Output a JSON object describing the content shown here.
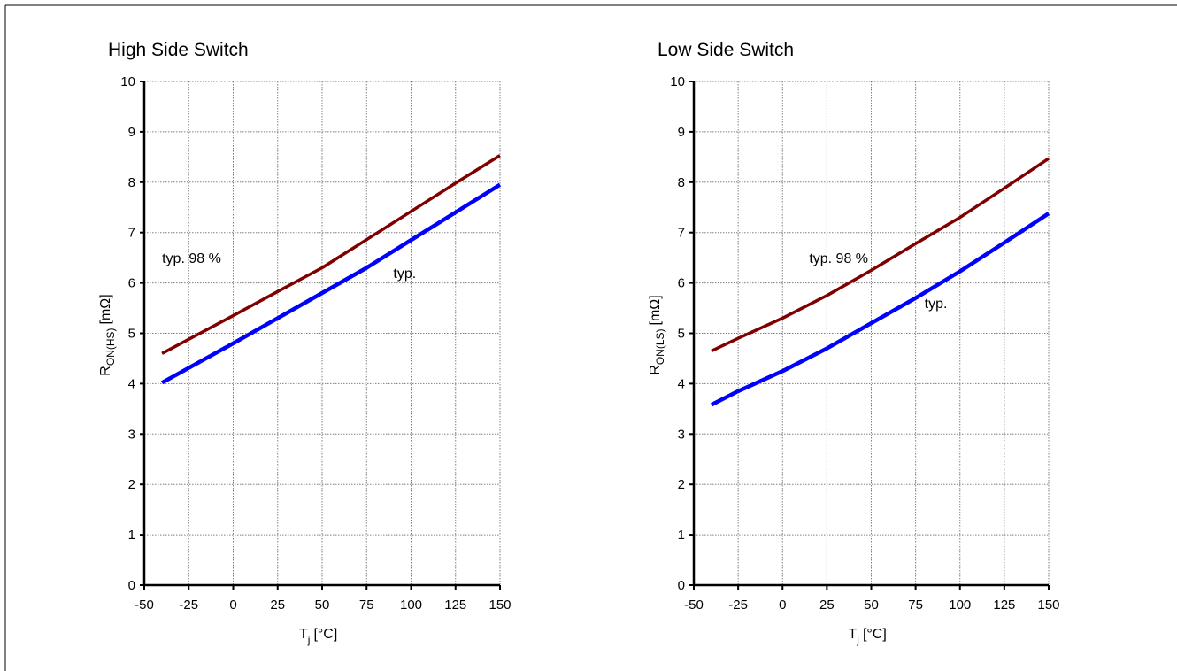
{
  "chart_data": [
    {
      "type": "line",
      "title": "High Side Switch",
      "xlabel_main": "T",
      "xlabel_sub": "j",
      "xlabel_unit": "[°C]",
      "ylabel_main": "R",
      "ylabel_sub": "ON(HS)",
      "ylabel_unit": "[mΩ]",
      "xlim": [
        -50,
        150
      ],
      "ylim": [
        0,
        10
      ],
      "xticks": [
        -50,
        -25,
        0,
        25,
        50,
        75,
        100,
        125,
        150
      ],
      "yticks": [
        0,
        1,
        2,
        3,
        4,
        5,
        6,
        7,
        8,
        9,
        10
      ],
      "grid": true,
      "series": [
        {
          "name": "typ. 98 %",
          "color": "#800000",
          "x": [
            -40,
            0,
            25,
            50,
            75,
            100,
            125,
            150
          ],
          "y": [
            4.6,
            5.35,
            5.83,
            6.3,
            6.86,
            7.42,
            7.98,
            8.53
          ]
        },
        {
          "name": "typ.",
          "color": "#0000ff",
          "x": [
            -40,
            0,
            25,
            50,
            75,
            100,
            125,
            150
          ],
          "y": [
            4.02,
            4.8,
            5.3,
            5.8,
            6.3,
            6.85,
            7.4,
            7.95
          ]
        }
      ],
      "annotations": [
        {
          "text": "typ. 98 %",
          "x": -40,
          "y": 6.4
        },
        {
          "text": "typ.",
          "x": 90,
          "y": 6.1
        }
      ]
    },
    {
      "type": "line",
      "title": "Low Side Switch",
      "xlabel_main": "T",
      "xlabel_sub": "j",
      "xlabel_unit": "[°C]",
      "ylabel_main": "R",
      "ylabel_sub": "ON(LS)",
      "ylabel_unit": "[mΩ]",
      "xlim": [
        -50,
        150
      ],
      "ylim": [
        0,
        10
      ],
      "xticks": [
        -50,
        -25,
        0,
        25,
        50,
        75,
        100,
        125,
        150
      ],
      "yticks": [
        0,
        1,
        2,
        3,
        4,
        5,
        6,
        7,
        8,
        9,
        10
      ],
      "grid": true,
      "series": [
        {
          "name": "typ. 98 %",
          "color": "#800000",
          "x": [
            -40,
            -25,
            0,
            25,
            50,
            75,
            100,
            125,
            150
          ],
          "y": [
            4.65,
            4.9,
            5.3,
            5.75,
            6.25,
            6.78,
            7.3,
            7.88,
            8.47
          ]
        },
        {
          "name": "typ.",
          "color": "#0000ff",
          "x": [
            -40,
            -25,
            0,
            25,
            50,
            75,
            100,
            125,
            150
          ],
          "y": [
            3.58,
            3.85,
            4.25,
            4.7,
            5.2,
            5.7,
            6.23,
            6.8,
            7.38
          ]
        }
      ],
      "annotations": [
        {
          "text": "typ. 98 %",
          "x": 15,
          "y": 6.4
        },
        {
          "text": "typ.",
          "x": 80,
          "y": 5.5
        }
      ]
    }
  ]
}
